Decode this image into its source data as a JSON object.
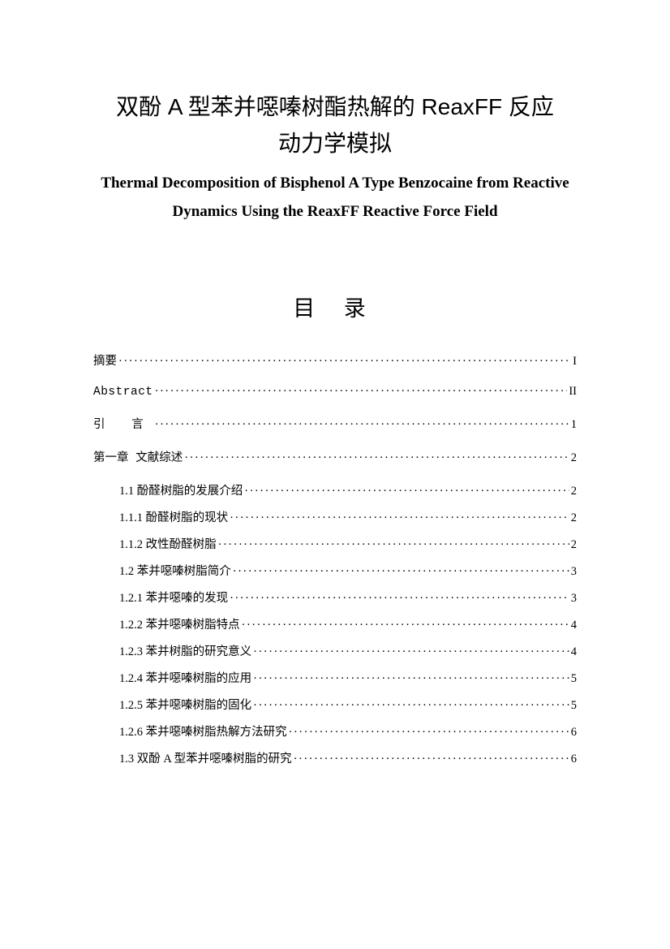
{
  "title_cn_line1": "双酚 A 型苯并噁嗪树酯热解的 ReaxFF 反应",
  "title_cn_line2": "动力学模拟",
  "title_en": "Thermal Decomposition of Bisphenol A Type Benzocaine from Reactive Dynamics Using the ReaxFF Reactive Force Field",
  "toc_heading": "目 录",
  "toc": [
    {
      "label": "摘要",
      "page": "I",
      "level": 0
    },
    {
      "label": "Abstract",
      "page": "II",
      "level": 0,
      "mono": true
    },
    {
      "label": "引  言",
      "page": "1",
      "level": 0,
      "spaced": true
    },
    {
      "label": "第一章 文献综述",
      "page": "2",
      "level": 0
    },
    {
      "label": "1.1  酚醛树脂的发展介绍",
      "page": "2",
      "level": 1
    },
    {
      "label": "1.1.1  酚醛树脂的现状",
      "page": "2",
      "level": 1
    },
    {
      "label": "1.1.2  改性酚醛树脂",
      "page": "2",
      "level": 1
    },
    {
      "label": "1.2  苯并噁嗪树脂简介",
      "page": "3",
      "level": 1
    },
    {
      "label": "1.2.1  苯并噁嗪的发现",
      "page": "3",
      "level": 1
    },
    {
      "label": "1.2.2  苯并噁嗪树脂特点",
      "page": "4",
      "level": 1
    },
    {
      "label": "1.2.3  苯并树脂的研究意义",
      "page": "4",
      "level": 1
    },
    {
      "label": "1.2.4  苯并噁嗪树脂的应用",
      "page": "5",
      "level": 1
    },
    {
      "label": "1.2.5  苯并噁嗪树脂的固化",
      "page": "5",
      "level": 1
    },
    {
      "label": "1.2.6  苯并噁嗪树脂热解方法研究",
      "page": "6",
      "level": 1
    },
    {
      "label": "1.3  双酚 A 型苯并噁嗪树脂的研究",
      "page": "6",
      "level": 1
    }
  ]
}
